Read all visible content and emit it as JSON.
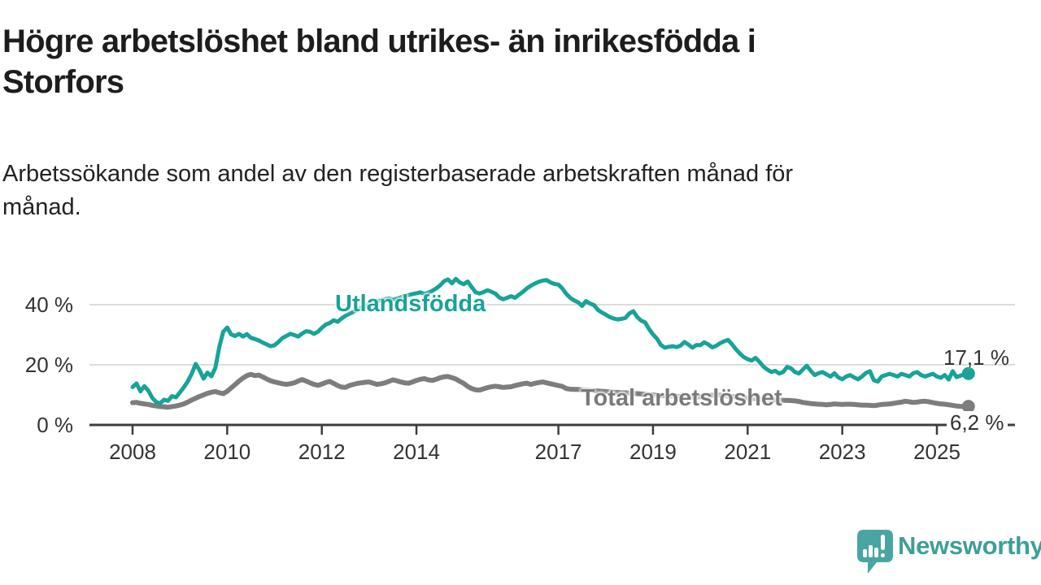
{
  "header": {
    "title": "Högre arbetslöshet bland utrikes- än inrikesfödda i\nStorfors",
    "subtitle": "Arbetssökande som andel av den registerbaserade arbetskraften månad för\nmånad."
  },
  "chart_data": {
    "type": "line",
    "unit": "%",
    "x_start": "2008-01",
    "x_end": "2025-09",
    "x_frequency": "monthly",
    "x_ticks": [
      2008,
      2010,
      2012,
      2014,
      2017,
      2019,
      2021,
      2023,
      2025
    ],
    "y_ticks": [
      {
        "value": 0,
        "label": "0 %"
      },
      {
        "value": 20,
        "label": "20 %"
      },
      {
        "value": 40,
        "label": "40 %"
      }
    ],
    "ylim": [
      0,
      52
    ],
    "grid": "horizontal",
    "legend_position": "inline-labels",
    "series": [
      {
        "name": "Utlandsfödda",
        "color": "#17a398",
        "end_label": "17,1 %",
        "end_value": 17.1,
        "values": [
          12.6,
          13.8,
          11.2,
          12.9,
          11.4,
          9.0,
          7.6,
          7.2,
          8.4,
          8.0,
          9.6,
          9.2,
          10.8,
          12.5,
          14.5,
          17.0,
          20.3,
          18.2,
          15.4,
          17.4,
          16.2,
          19.0,
          26.0,
          31.0,
          32.4,
          30.1,
          29.6,
          30.3,
          29.4,
          30.2,
          29.0,
          28.6,
          28.1,
          27.4,
          26.8,
          26.2,
          26.5,
          27.6,
          28.9,
          29.6,
          30.3,
          29.9,
          29.4,
          30.4,
          31.2,
          31.0,
          30.3,
          31.0,
          32.3,
          33.4,
          33.9,
          34.8,
          34.3,
          35.4,
          36.3,
          37.0,
          37.6,
          38.4,
          39.0,
          39.5,
          40.1,
          40.6,
          41.0,
          41.4,
          41.8,
          42.1,
          41.6,
          42.0,
          42.4,
          42.9,
          43.2,
          43.5,
          43.8,
          44.1,
          43.6,
          44.0,
          44.6,
          45.4,
          46.4,
          47.8,
          48.4,
          47.1,
          48.6,
          47.4,
          46.8,
          47.7,
          45.9,
          44.1,
          43.7,
          44.2,
          44.8,
          44.3,
          43.7,
          42.4,
          41.8,
          42.3,
          42.8,
          42.3,
          43.3,
          44.3,
          45.4,
          46.3,
          47.0,
          47.6,
          48.0,
          48.2,
          47.4,
          46.9,
          46.7,
          45.4,
          43.6,
          42.3,
          41.4,
          40.8,
          39.6,
          41.2,
          40.4,
          39.9,
          38.3,
          37.4,
          36.7,
          35.9,
          35.4,
          35.1,
          35.3,
          35.6,
          37.1,
          37.8,
          35.9,
          34.7,
          34.1,
          31.9,
          30.1,
          28.7,
          26.6,
          25.7,
          26.0,
          26.2,
          25.9,
          26.4,
          27.6,
          26.7,
          25.7,
          26.6,
          26.5,
          27.5,
          26.8,
          25.8,
          26.3,
          27.2,
          27.8,
          28.3,
          26.9,
          25.2,
          23.8,
          22.6,
          21.9,
          21.4,
          22.3,
          21.0,
          19.4,
          18.4,
          17.6,
          18.0,
          17.1,
          17.6,
          19.3,
          18.8,
          17.6,
          17.1,
          18.4,
          19.7,
          18.0,
          16.6,
          17.2,
          17.6,
          16.8,
          16.1,
          17.2,
          15.8,
          15.2,
          16.1,
          16.6,
          15.8,
          15.2,
          16.1,
          17.3,
          17.9,
          14.9,
          14.4,
          16.1,
          16.6,
          17.0,
          16.6,
          16.1,
          17.0,
          16.6,
          16.1,
          17.2,
          17.6,
          16.6,
          16.1,
          16.6,
          17.0,
          16.1,
          15.7,
          16.6,
          15.1,
          17.9,
          15.9,
          16.4,
          16.8,
          17.1
        ]
      },
      {
        "name": "Total arbetslöshet",
        "color": "#7d7d7d",
        "end_label": "6,2 %",
        "end_value": 6.2,
        "values": [
          7.4,
          7.5,
          7.2,
          7.0,
          6.8,
          6.5,
          6.3,
          6.1,
          6.0,
          5.9,
          6.1,
          6.3,
          6.6,
          7.0,
          7.6,
          8.3,
          8.9,
          9.5,
          10.0,
          10.5,
          10.9,
          11.1,
          10.7,
          10.4,
          11.2,
          12.3,
          13.4,
          14.6,
          15.6,
          16.4,
          16.8,
          16.4,
          16.6,
          16.0,
          15.3,
          14.7,
          14.3,
          14.0,
          13.7,
          13.5,
          13.7,
          14.0,
          14.6,
          15.1,
          14.6,
          14.0,
          13.5,
          13.2,
          13.6,
          14.1,
          14.5,
          13.8,
          13.1,
          12.6,
          12.5,
          13.1,
          13.5,
          13.8,
          14.0,
          14.2,
          14.3,
          13.9,
          13.5,
          13.7,
          14.0,
          14.5,
          15.0,
          14.7,
          14.3,
          14.0,
          13.9,
          14.3,
          14.8,
          15.2,
          15.4,
          15.0,
          14.8,
          15.2,
          15.7,
          16.0,
          16.1,
          15.7,
          15.3,
          14.5,
          13.8,
          12.8,
          12.1,
          11.7,
          11.6,
          12.0,
          12.4,
          12.7,
          12.9,
          12.7,
          12.5,
          12.6,
          12.7,
          13.1,
          13.4,
          13.7,
          13.9,
          13.5,
          13.8,
          14.1,
          14.3,
          14.0,
          13.7,
          13.4,
          13.1,
          12.8,
          12.1,
          11.9,
          11.8,
          11.8,
          11.7,
          11.6,
          11.5,
          11.4,
          11.3,
          11.2,
          11.1,
          11.0,
          10.9,
          10.8,
          10.7,
          10.7,
          10.6,
          10.5,
          10.4,
          10.3,
          10.2,
          10.1,
          10.0,
          9.9,
          9.8,
          9.7,
          9.6,
          9.6,
          9.5,
          9.5,
          9.4,
          9.4,
          9.3,
          9.3,
          9.4,
          9.5,
          9.7,
          9.9,
          10.0,
          9.9,
          9.8,
          9.6,
          9.5,
          9.3,
          9.2,
          9.0,
          8.9,
          8.8,
          8.7,
          8.6,
          8.5,
          8.4,
          8.4,
          8.3,
          8.3,
          8.2,
          8.2,
          8.1,
          8.0,
          7.8,
          7.5,
          7.3,
          7.1,
          7.0,
          6.9,
          6.8,
          6.7,
          6.8,
          7.0,
          6.9,
          6.8,
          6.9,
          6.9,
          6.8,
          6.7,
          6.6,
          6.6,
          6.5,
          6.4,
          6.6,
          6.8,
          6.9,
          7.0,
          7.2,
          7.4,
          7.6,
          7.9,
          7.7,
          7.5,
          7.6,
          7.8,
          7.9,
          7.7,
          7.4,
          7.2,
          7.0,
          6.9,
          6.7,
          6.5,
          6.3,
          6.2,
          6.1,
          6.2
        ]
      }
    ]
  },
  "footer": {
    "brand": "Newsworthy"
  },
  "colors": {
    "accent_teal": "#17a398",
    "series_gray": "#7d7d7d",
    "axis": "#3d3d3d",
    "grid": "#dcdcdc",
    "text": "#1d1d1d",
    "tick_text": "#333333",
    "logo_teal": "#4aa5a2",
    "logo_text": "#3f9e98"
  }
}
